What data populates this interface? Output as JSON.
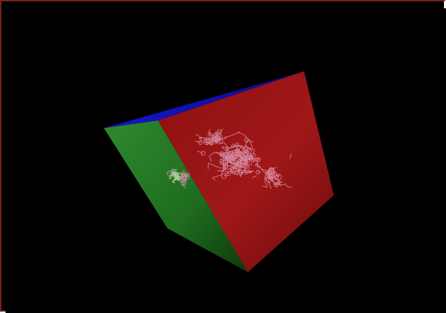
{
  "viewer": {
    "background_color": "#000000",
    "frame_color": "#7a1f1f"
  },
  "scene": {
    "object": "molecule-bounding-box",
    "faces": {
      "top_color": "#1a1aa8",
      "left_color": "#1f6b1f",
      "front_color": "#8a1010"
    },
    "molecule": {
      "render_style": "wireframe",
      "line_color": "#d98fa6"
    }
  }
}
